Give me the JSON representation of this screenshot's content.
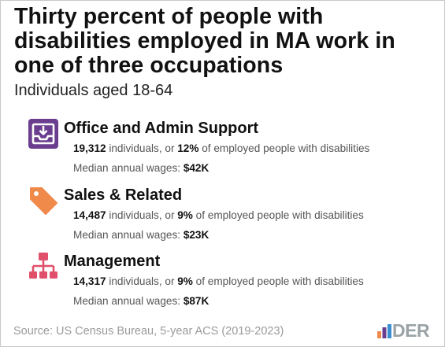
{
  "title": "Thirty percent of people with disabilities employed in MA work in one of three occupations",
  "subtitle": "Individuals aged 18-64",
  "occupations": [
    {
      "name": "Office and Admin Support",
      "icon": "inbox-download-icon",
      "icon_color": "#6a3d8f",
      "count": "19,312",
      "count_text": " individuals, or ",
      "pct": "12%",
      "pct_text": " of employed people with disabilities",
      "wage_label": "Median annual wages: ",
      "wage": "$42K"
    },
    {
      "name": "Sales & Related",
      "icon": "price-tag-icon",
      "icon_color": "#f08a4b",
      "count": "14,487",
      "count_text": " individuals, or ",
      "pct": "9%",
      "pct_text": " of employed people with disabilities",
      "wage_label": "Median annual wages: ",
      "wage": "$23K"
    },
    {
      "name": "Management",
      "icon": "org-chart-icon",
      "icon_color": "#e0506a",
      "count": "14,317",
      "count_text": " individuals, or ",
      "pct": "9%",
      "pct_text": " of employed people with disabilities",
      "wage_label": "Median annual wages: ",
      "wage": "$87K"
    }
  ],
  "source": "Source: US Census Bureau, 5-year ACS (2019-2023)",
  "logo": {
    "text": "DER",
    "bar_colors": [
      "#f08a4b",
      "#6a3d8f",
      "#3a8fd0"
    ],
    "text_color": "#9aa3a6"
  }
}
